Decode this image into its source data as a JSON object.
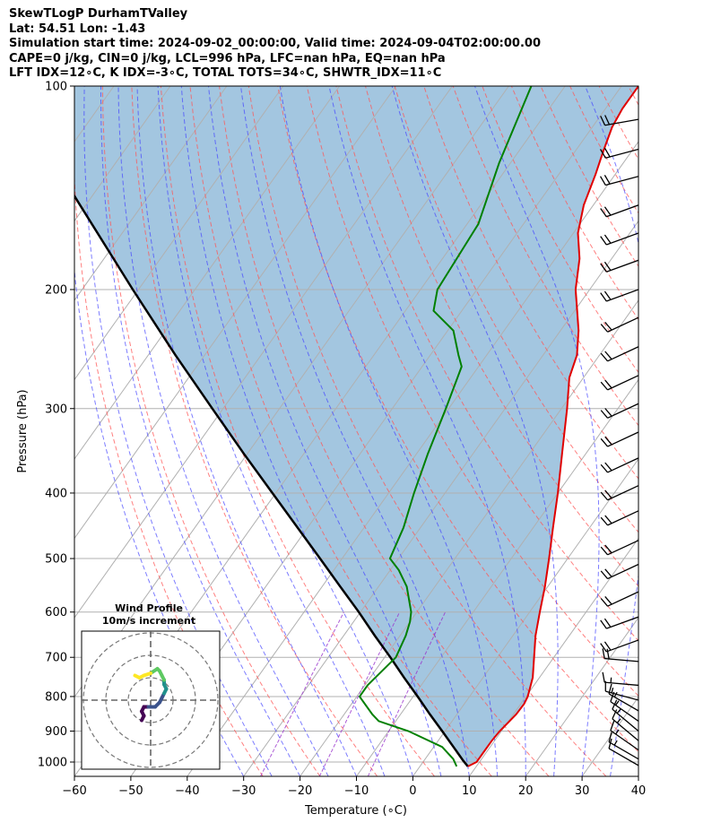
{
  "header": {
    "line1": "SkewTLogP DurhamTValley",
    "line2": "Lat: 54.51   Lon: -1.43",
    "line3": "Simulation start time: 2024-09-02_00:00:00, Valid time: 2024-09-04T02:00:00.00",
    "line4": "CAPE=0 j/kg, CIN=0 j/kg, LCL=996 hPa, LFC=nan hPa, EQ=nan hPa",
    "line5": "LFT IDX=12∘C, K IDX=-3∘C, TOTAL TOTS=34∘C, SHWTR_IDX=11∘C"
  },
  "chart_data": {
    "type": "line",
    "chart_kind": "skew-t log-p",
    "xlabel": "Temperature (∘C)",
    "ylabel": "Pressure (hPa)",
    "xlim": [
      -60,
      40
    ],
    "ylim": [
      1050,
      100
    ],
    "y_scale": "log",
    "x_ticks": [
      -60,
      -50,
      -40,
      -30,
      -20,
      -10,
      0,
      10,
      20,
      30,
      40
    ],
    "x_tick_labels": [
      "−60",
      "−50",
      "−40",
      "−30",
      "−20",
      "−10",
      "0",
      "10",
      "20",
      "30",
      "40"
    ],
    "y_ticks": [
      100,
      200,
      300,
      400,
      500,
      600,
      700,
      800,
      900,
      1000
    ],
    "y_tick_labels": [
      "100",
      "200",
      "300",
      "400",
      "500",
      "600",
      "700",
      "800",
      "900",
      "1000"
    ],
    "grid": true,
    "colors": {
      "temperature": "#e00000",
      "dewpoint": "#008000",
      "parcel": "#000000",
      "shade": "#a3c6e0",
      "dry_adiabat": "#ff5555",
      "moist_adiabat": "#4444ff",
      "mixing_ratio": "#9933cc",
      "isotherm": "#888888"
    },
    "series": [
      {
        "key": "temperature",
        "points": [
          [
            1015,
            8.5
          ],
          [
            1000,
            9.5
          ],
          [
            970,
            9.5
          ],
          [
            930,
            9.5
          ],
          [
            900,
            9.7
          ],
          [
            850,
            10.5
          ],
          [
            820,
            10.6
          ],
          [
            800,
            10.3
          ],
          [
            750,
            8.8
          ],
          [
            700,
            6.5
          ],
          [
            650,
            4.0
          ],
          [
            600,
            1.8
          ],
          [
            550,
            -0.5
          ],
          [
            500,
            -3.3
          ],
          [
            450,
            -6.5
          ],
          [
            400,
            -10.0
          ],
          [
            350,
            -14.2
          ],
          [
            300,
            -19.0
          ],
          [
            270,
            -22.5
          ],
          [
            250,
            -24.0
          ],
          [
            230,
            -26.8
          ],
          [
            210,
            -30.5
          ],
          [
            200,
            -32.5
          ],
          [
            180,
            -35.7
          ],
          [
            165,
            -39.2
          ],
          [
            150,
            -41.7
          ],
          [
            135,
            -43.5
          ],
          [
            125,
            -45.0
          ],
          [
            115,
            -46.5
          ],
          [
            108,
            -47.0
          ],
          [
            100,
            -47.0
          ]
        ]
      },
      {
        "key": "dewpoint",
        "points": [
          [
            1015,
            6.5
          ],
          [
            990,
            5.0
          ],
          [
            950,
            1.5
          ],
          [
            900,
            -6.5
          ],
          [
            870,
            -13.0
          ],
          [
            850,
            -15.0
          ],
          [
            800,
            -19.5
          ],
          [
            770,
            -19.5
          ],
          [
            700,
            -18.0
          ],
          [
            650,
            -19.0
          ],
          [
            620,
            -20.0
          ],
          [
            600,
            -21.0
          ],
          [
            550,
            -25.0
          ],
          [
            520,
            -28.5
          ],
          [
            500,
            -31.5
          ],
          [
            450,
            -33.0
          ],
          [
            400,
            -35.5
          ],
          [
            350,
            -38.0
          ],
          [
            300,
            -40.5
          ],
          [
            280,
            -41.7
          ],
          [
            260,
            -43.0
          ],
          [
            250,
            -45.0
          ],
          [
            230,
            -49.0
          ],
          [
            215,
            -55.0
          ],
          [
            200,
            -57.0
          ],
          [
            160,
            -58.0
          ],
          [
            130,
            -62.0
          ],
          [
            100,
            -66.0
          ]
        ]
      },
      {
        "key": "parcel",
        "points": [
          [
            1015,
            8.5
          ],
          [
            996,
            7.0
          ],
          [
            950,
            3.5
          ],
          [
            900,
            -0.5
          ],
          [
            850,
            -4.8
          ],
          [
            800,
            -9.2
          ],
          [
            750,
            -14.0
          ],
          [
            700,
            -19.0
          ],
          [
            650,
            -24.5
          ],
          [
            600,
            -30.3
          ],
          [
            550,
            -36.8
          ],
          [
            500,
            -43.9
          ],
          [
            450,
            -51.8
          ],
          [
            400,
            -60.6
          ],
          [
            350,
            -70.6
          ],
          [
            300,
            -81.9
          ],
          [
            250,
            -95.2
          ],
          [
            200,
            -111.0
          ],
          [
            150,
            -131.0
          ],
          [
            100,
            -159.0
          ]
        ]
      }
    ],
    "wind_barbs": [
      {
        "p": 1012,
        "speed_kt": 10,
        "dir": 300
      },
      {
        "p": 990,
        "speed_kt": 15,
        "dir": 300
      },
      {
        "p": 960,
        "speed_kt": 15,
        "dir": 305
      },
      {
        "p": 930,
        "speed_kt": 15,
        "dir": 310
      },
      {
        "p": 900,
        "speed_kt": 15,
        "dir": 310
      },
      {
        "p": 870,
        "speed_kt": 15,
        "dir": 305
      },
      {
        "p": 840,
        "speed_kt": 15,
        "dir": 300
      },
      {
        "p": 810,
        "speed_kt": 15,
        "dir": 285
      },
      {
        "p": 770,
        "speed_kt": 15,
        "dir": 275
      },
      {
        "p": 710,
        "speed_kt": 20,
        "dir": 275
      },
      {
        "p": 660,
        "speed_kt": 20,
        "dir": 250
      },
      {
        "p": 610,
        "speed_kt": 20,
        "dir": 250
      },
      {
        "p": 560,
        "speed_kt": 20,
        "dir": 245
      },
      {
        "p": 510,
        "speed_kt": 20,
        "dir": 245
      },
      {
        "p": 470,
        "speed_kt": 20,
        "dir": 245
      },
      {
        "p": 425,
        "speed_kt": 20,
        "dir": 245
      },
      {
        "p": 390,
        "speed_kt": 20,
        "dir": 245
      },
      {
        "p": 355,
        "speed_kt": 20,
        "dir": 245
      },
      {
        "p": 325,
        "speed_kt": 20,
        "dir": 245
      },
      {
        "p": 295,
        "speed_kt": 20,
        "dir": 245
      },
      {
        "p": 268,
        "speed_kt": 20,
        "dir": 245
      },
      {
        "p": 243,
        "speed_kt": 20,
        "dir": 245
      },
      {
        "p": 220,
        "speed_kt": 20,
        "dir": 245
      },
      {
        "p": 200,
        "speed_kt": 20,
        "dir": 250
      },
      {
        "p": 181,
        "speed_kt": 20,
        "dir": 250
      },
      {
        "p": 165,
        "speed_kt": 20,
        "dir": 250
      },
      {
        "p": 150,
        "speed_kt": 20,
        "dir": 250
      },
      {
        "p": 136,
        "speed_kt": 20,
        "dir": 255
      },
      {
        "p": 124,
        "speed_kt": 20,
        "dir": 255
      },
      {
        "p": 112,
        "speed_kt": 20,
        "dir": 260
      }
    ],
    "hodograph": {
      "title": "Wind Profile",
      "subtitle": "10m/s increment",
      "ring_step": 10,
      "rings": 3,
      "colormap": [
        "#440154",
        "#3b528b",
        "#21918c",
        "#5ec962",
        "#fde725"
      ],
      "points": [
        [
          -4,
          -9
        ],
        [
          -3,
          -7
        ],
        [
          -4,
          -5
        ],
        [
          -3,
          -3
        ],
        [
          -1,
          -3
        ],
        [
          2,
          -3
        ],
        [
          4,
          -1
        ],
        [
          5,
          1
        ],
        [
          6,
          3
        ],
        [
          7,
          5
        ],
        [
          6,
          7
        ],
        [
          6,
          9
        ],
        [
          5,
          11
        ],
        [
          4,
          13
        ],
        [
          3,
          14
        ],
        [
          0,
          12
        ],
        [
          -3,
          11
        ],
        [
          -5,
          10
        ],
        [
          -7,
          11
        ]
      ]
    }
  }
}
